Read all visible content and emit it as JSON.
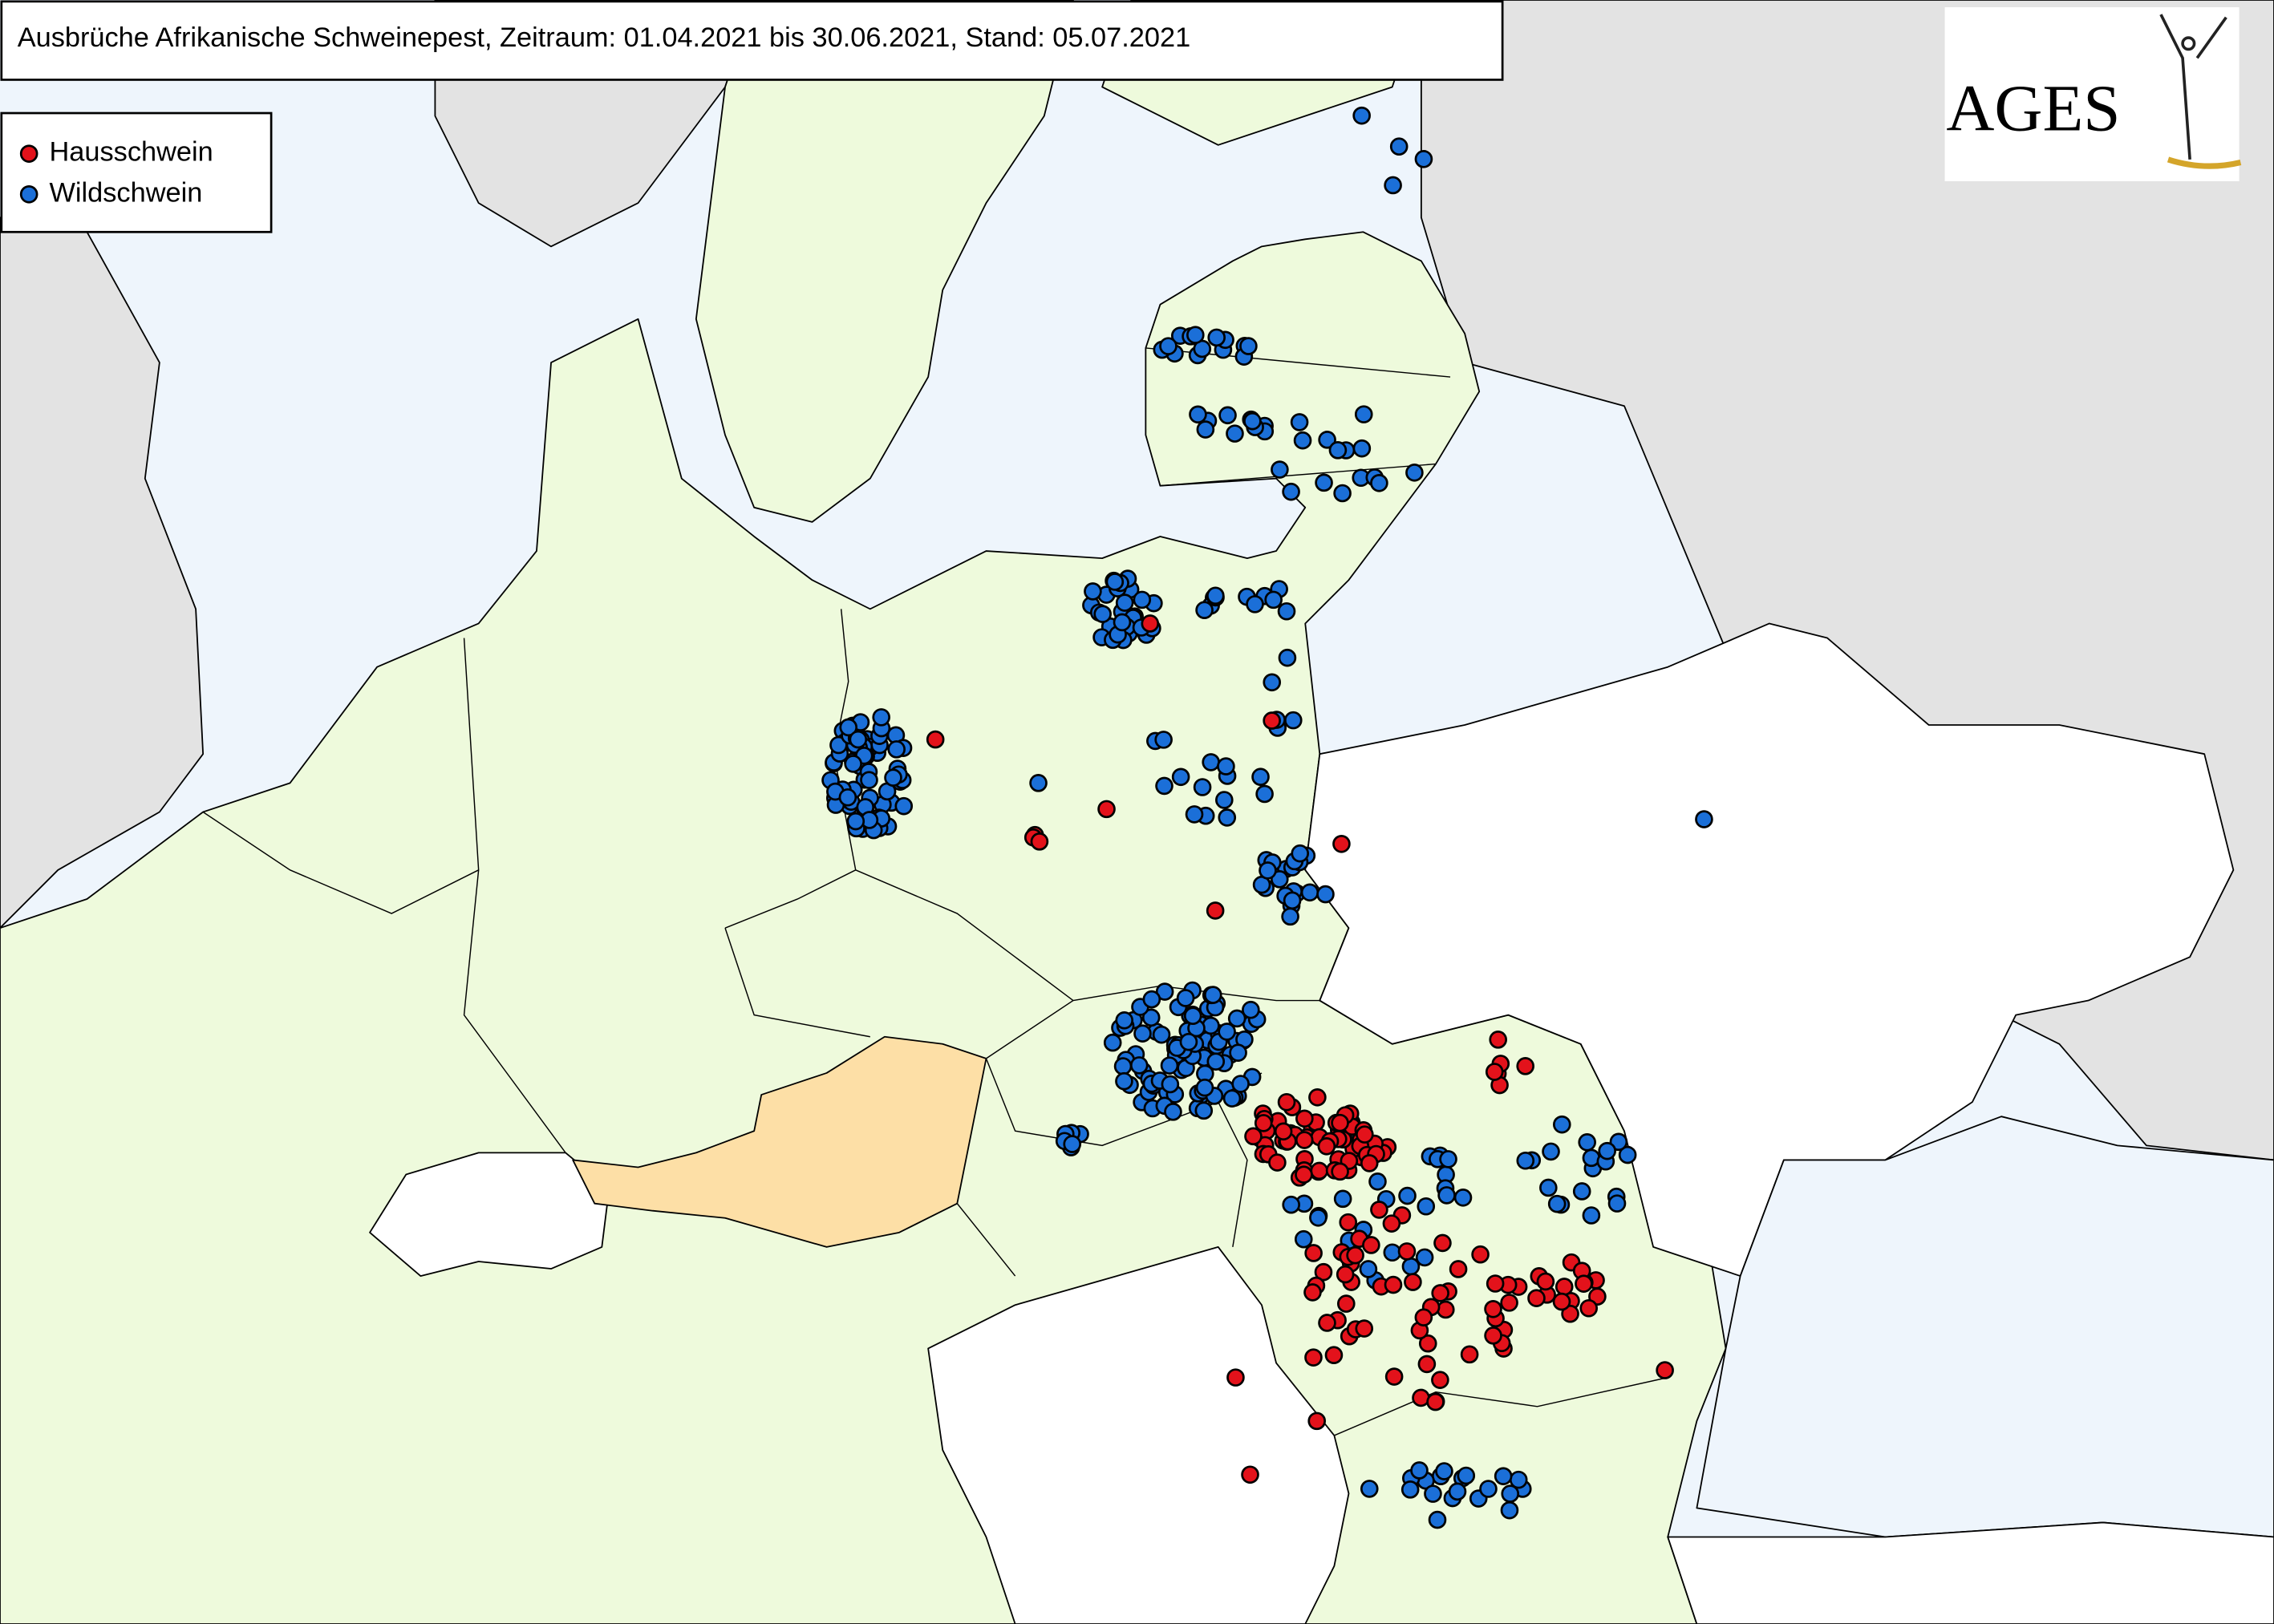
{
  "header": {
    "title": "Ausbrüche Afrikanische Schweinepest, Zeitraum: 01.04.2021 bis 30.06.2021, Stand: 05.07.2021"
  },
  "legend": {
    "items": [
      {
        "label": "Hausschwein",
        "color": "#e3121b"
      },
      {
        "label": "Wildschwein",
        "color": "#1b6fd8"
      }
    ]
  },
  "logo": {
    "text": "AGES"
  }
}
